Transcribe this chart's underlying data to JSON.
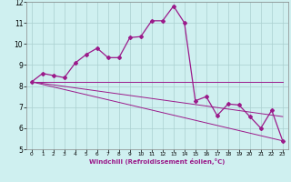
{
  "x_data": [
    0,
    1,
    2,
    3,
    4,
    5,
    6,
    7,
    8,
    9,
    10,
    11,
    12,
    13,
    14,
    15,
    16,
    17,
    18,
    19,
    20,
    21,
    22,
    23
  ],
  "y_main": [
    8.2,
    8.6,
    8.5,
    8.4,
    9.1,
    9.5,
    9.8,
    9.35,
    9.35,
    10.3,
    10.35,
    11.1,
    11.1,
    11.8,
    11.0,
    7.3,
    7.5,
    6.6,
    7.15,
    7.1,
    6.55,
    6.0,
    6.85,
    5.4
  ],
  "straight_lines": [
    [
      [
        0,
        23
      ],
      [
        8.2,
        8.2
      ]
    ],
    [
      [
        0,
        23
      ],
      [
        8.2,
        6.55
      ]
    ],
    [
      [
        0,
        23
      ],
      [
        8.2,
        5.4
      ]
    ]
  ],
  "color": "#9b1a8a",
  "bg_color": "#cff0f0",
  "grid_color": "#aacfcf",
  "xlabel": "Windchill (Refroidissement éolien,°C)",
  "ylim": [
    5,
    12
  ],
  "xlim": [
    -0.5,
    23.5
  ],
  "yticks": [
    5,
    6,
    7,
    8,
    9,
    10,
    11,
    12
  ],
  "xticks": [
    0,
    1,
    2,
    3,
    4,
    5,
    6,
    7,
    8,
    9,
    10,
    11,
    12,
    13,
    14,
    15,
    16,
    17,
    18,
    19,
    20,
    21,
    22,
    23
  ]
}
